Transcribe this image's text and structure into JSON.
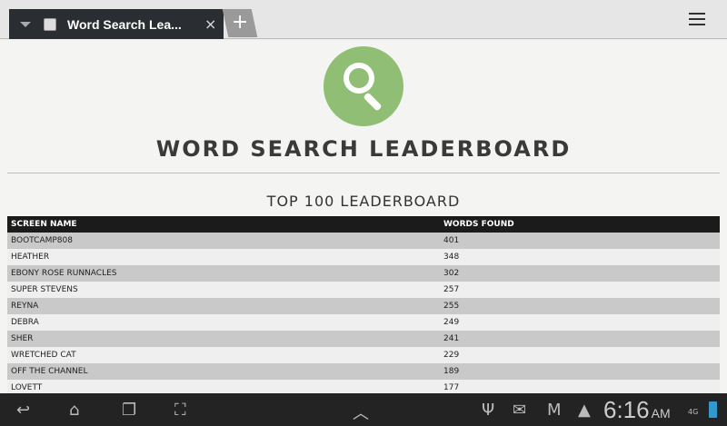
{
  "browser": {
    "tab_title": "Word Search Lea...",
    "close": "×",
    "new_tab": "+"
  },
  "page": {
    "title": "WORD SEARCH LEADERBOARD",
    "subtitle": "TOP 100 LEADERBOARD",
    "columns": [
      "SCREEN NAME",
      "WORDS FOUND"
    ],
    "rows": [
      [
        "BOOTCAMP808",
        "401"
      ],
      [
        "HEATHER",
        "348"
      ],
      [
        "EBONY ROSE RUNNACLES",
        "302"
      ],
      [
        "SUPER STEVENS",
        "257"
      ],
      [
        "REYNA",
        "255"
      ],
      [
        "DEBRA",
        "249"
      ],
      [
        "SHER",
        "241"
      ],
      [
        "WRETCHED CAT",
        "229"
      ],
      [
        "OFF THE CHANNEL",
        "189"
      ],
      [
        "LOVETT",
        "177"
      ]
    ]
  },
  "status": {
    "time": "6:16",
    "ampm": "AM",
    "network": "4G"
  },
  "colors": {
    "logo": "#8fbe74",
    "header": "#1b1b1b"
  }
}
